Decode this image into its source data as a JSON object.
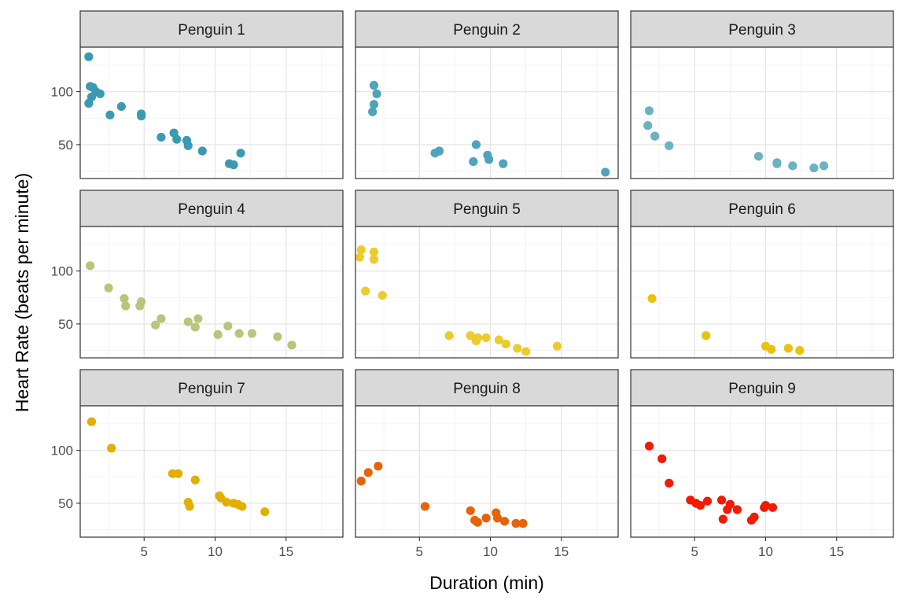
{
  "chart_data": {
    "type": "scatter",
    "title": "",
    "xlabel": "Duration (min)",
    "ylabel": "Heart Rate (beats per minute)",
    "xlim": [
      0.5,
      19
    ],
    "ylim": [
      18,
      142
    ],
    "x_ticks": [
      5,
      10,
      15
    ],
    "y_ticks": [
      50,
      100
    ],
    "grid": true,
    "legend": "none",
    "panels": [
      {
        "name": "Penguin 1",
        "color": "#3B9AB2",
        "points": [
          [
            1.1,
            133
          ],
          [
            1.2,
            105
          ],
          [
            1.4,
            104
          ],
          [
            1.6,
            100
          ],
          [
            1.9,
            98
          ],
          [
            1.3,
            95
          ],
          [
            1.1,
            89
          ],
          [
            2.6,
            78
          ],
          [
            3.4,
            86
          ],
          [
            4.8,
            79
          ],
          [
            4.8,
            77
          ],
          [
            6.2,
            57
          ],
          [
            7.1,
            61
          ],
          [
            7.3,
            55
          ],
          [
            8.0,
            54
          ],
          [
            8.1,
            49
          ],
          [
            9.1,
            44
          ],
          [
            11.0,
            32
          ],
          [
            11.3,
            31
          ],
          [
            11.8,
            42
          ]
        ]
      },
      {
        "name": "Penguin 2",
        "color": "#4FA3BA",
        "points": [
          [
            1.8,
            106
          ],
          [
            2.0,
            98
          ],
          [
            1.8,
            88
          ],
          [
            1.7,
            81
          ],
          [
            6.1,
            42
          ],
          [
            6.4,
            44
          ],
          [
            8.8,
            34
          ],
          [
            9.0,
            50
          ],
          [
            9.8,
            40
          ],
          [
            9.9,
            36
          ],
          [
            10.9,
            32
          ],
          [
            18.1,
            24
          ]
        ]
      },
      {
        "name": "Penguin 3",
        "color": "#6AB2C4",
        "points": [
          [
            1.8,
            82
          ],
          [
            1.7,
            68
          ],
          [
            2.2,
            58
          ],
          [
            3.2,
            49
          ],
          [
            9.5,
            39
          ],
          [
            10.8,
            33
          ],
          [
            10.8,
            32
          ],
          [
            11.9,
            30
          ],
          [
            13.4,
            28
          ],
          [
            14.1,
            30
          ]
        ]
      },
      {
        "name": "Penguin 4",
        "color": "#B8C57A",
        "points": [
          [
            1.2,
            105
          ],
          [
            2.5,
            84
          ],
          [
            3.6,
            74
          ],
          [
            3.7,
            67
          ],
          [
            4.7,
            67
          ],
          [
            4.8,
            71
          ],
          [
            5.8,
            49
          ],
          [
            6.2,
            55
          ],
          [
            8.1,
            52
          ],
          [
            8.6,
            47
          ],
          [
            8.8,
            55
          ],
          [
            10.2,
            40
          ],
          [
            10.9,
            48
          ],
          [
            11.7,
            41
          ],
          [
            12.6,
            41
          ],
          [
            14.4,
            38
          ],
          [
            15.4,
            30
          ]
        ]
      },
      {
        "name": "Penguin 5",
        "color": "#ECCB2E",
        "points": [
          [
            0.9,
            120
          ],
          [
            1.8,
            118
          ],
          [
            0.8,
            113
          ],
          [
            1.8,
            111
          ],
          [
            1.2,
            81
          ],
          [
            2.4,
            77
          ],
          [
            7.1,
            39
          ],
          [
            8.6,
            39
          ],
          [
            9.0,
            34
          ],
          [
            9.1,
            37
          ],
          [
            9.7,
            37
          ],
          [
            10.6,
            35
          ],
          [
            11.1,
            31
          ],
          [
            11.9,
            27
          ],
          [
            12.5,
            24
          ],
          [
            14.7,
            29
          ]
        ]
      },
      {
        "name": "Penguin 6",
        "color": "#E8C20D",
        "points": [
          [
            2.0,
            74
          ],
          [
            5.8,
            39
          ],
          [
            10.0,
            29
          ],
          [
            10.4,
            26
          ],
          [
            11.6,
            27
          ],
          [
            12.4,
            25
          ]
        ]
      },
      {
        "name": "Penguin 7",
        "color": "#E2AE00",
        "points": [
          [
            1.3,
            127
          ],
          [
            2.7,
            102
          ],
          [
            7.0,
            78
          ],
          [
            7.4,
            78
          ],
          [
            8.1,
            51
          ],
          [
            8.2,
            47
          ],
          [
            8.6,
            72
          ],
          [
            10.3,
            57
          ],
          [
            10.4,
            55
          ],
          [
            10.8,
            51
          ],
          [
            11.3,
            50
          ],
          [
            11.6,
            49
          ],
          [
            11.9,
            47
          ],
          [
            13.5,
            42
          ]
        ]
      },
      {
        "name": "Penguin 8",
        "color": "#E6630A",
        "points": [
          [
            0.9,
            71
          ],
          [
            1.4,
            79
          ],
          [
            2.1,
            85
          ],
          [
            5.4,
            47
          ],
          [
            8.6,
            43
          ],
          [
            8.9,
            34
          ],
          [
            9.1,
            32
          ],
          [
            9.7,
            36
          ],
          [
            10.4,
            41
          ],
          [
            10.5,
            36
          ],
          [
            11.0,
            33
          ],
          [
            11.8,
            31
          ],
          [
            12.3,
            31
          ]
        ]
      },
      {
        "name": "Penguin 9",
        "color": "#F21A00",
        "points": [
          [
            1.8,
            104
          ],
          [
            2.7,
            92
          ],
          [
            3.2,
            69
          ],
          [
            4.7,
            53
          ],
          [
            5.1,
            50
          ],
          [
            5.4,
            48
          ],
          [
            5.9,
            52
          ],
          [
            6.9,
            53
          ],
          [
            7.0,
            35
          ],
          [
            7.3,
            44
          ],
          [
            7.5,
            49
          ],
          [
            8.0,
            44
          ],
          [
            9.0,
            34
          ],
          [
            9.2,
            37
          ],
          [
            9.9,
            46
          ],
          [
            10.0,
            48
          ],
          [
            10.5,
            46
          ]
        ]
      }
    ]
  }
}
